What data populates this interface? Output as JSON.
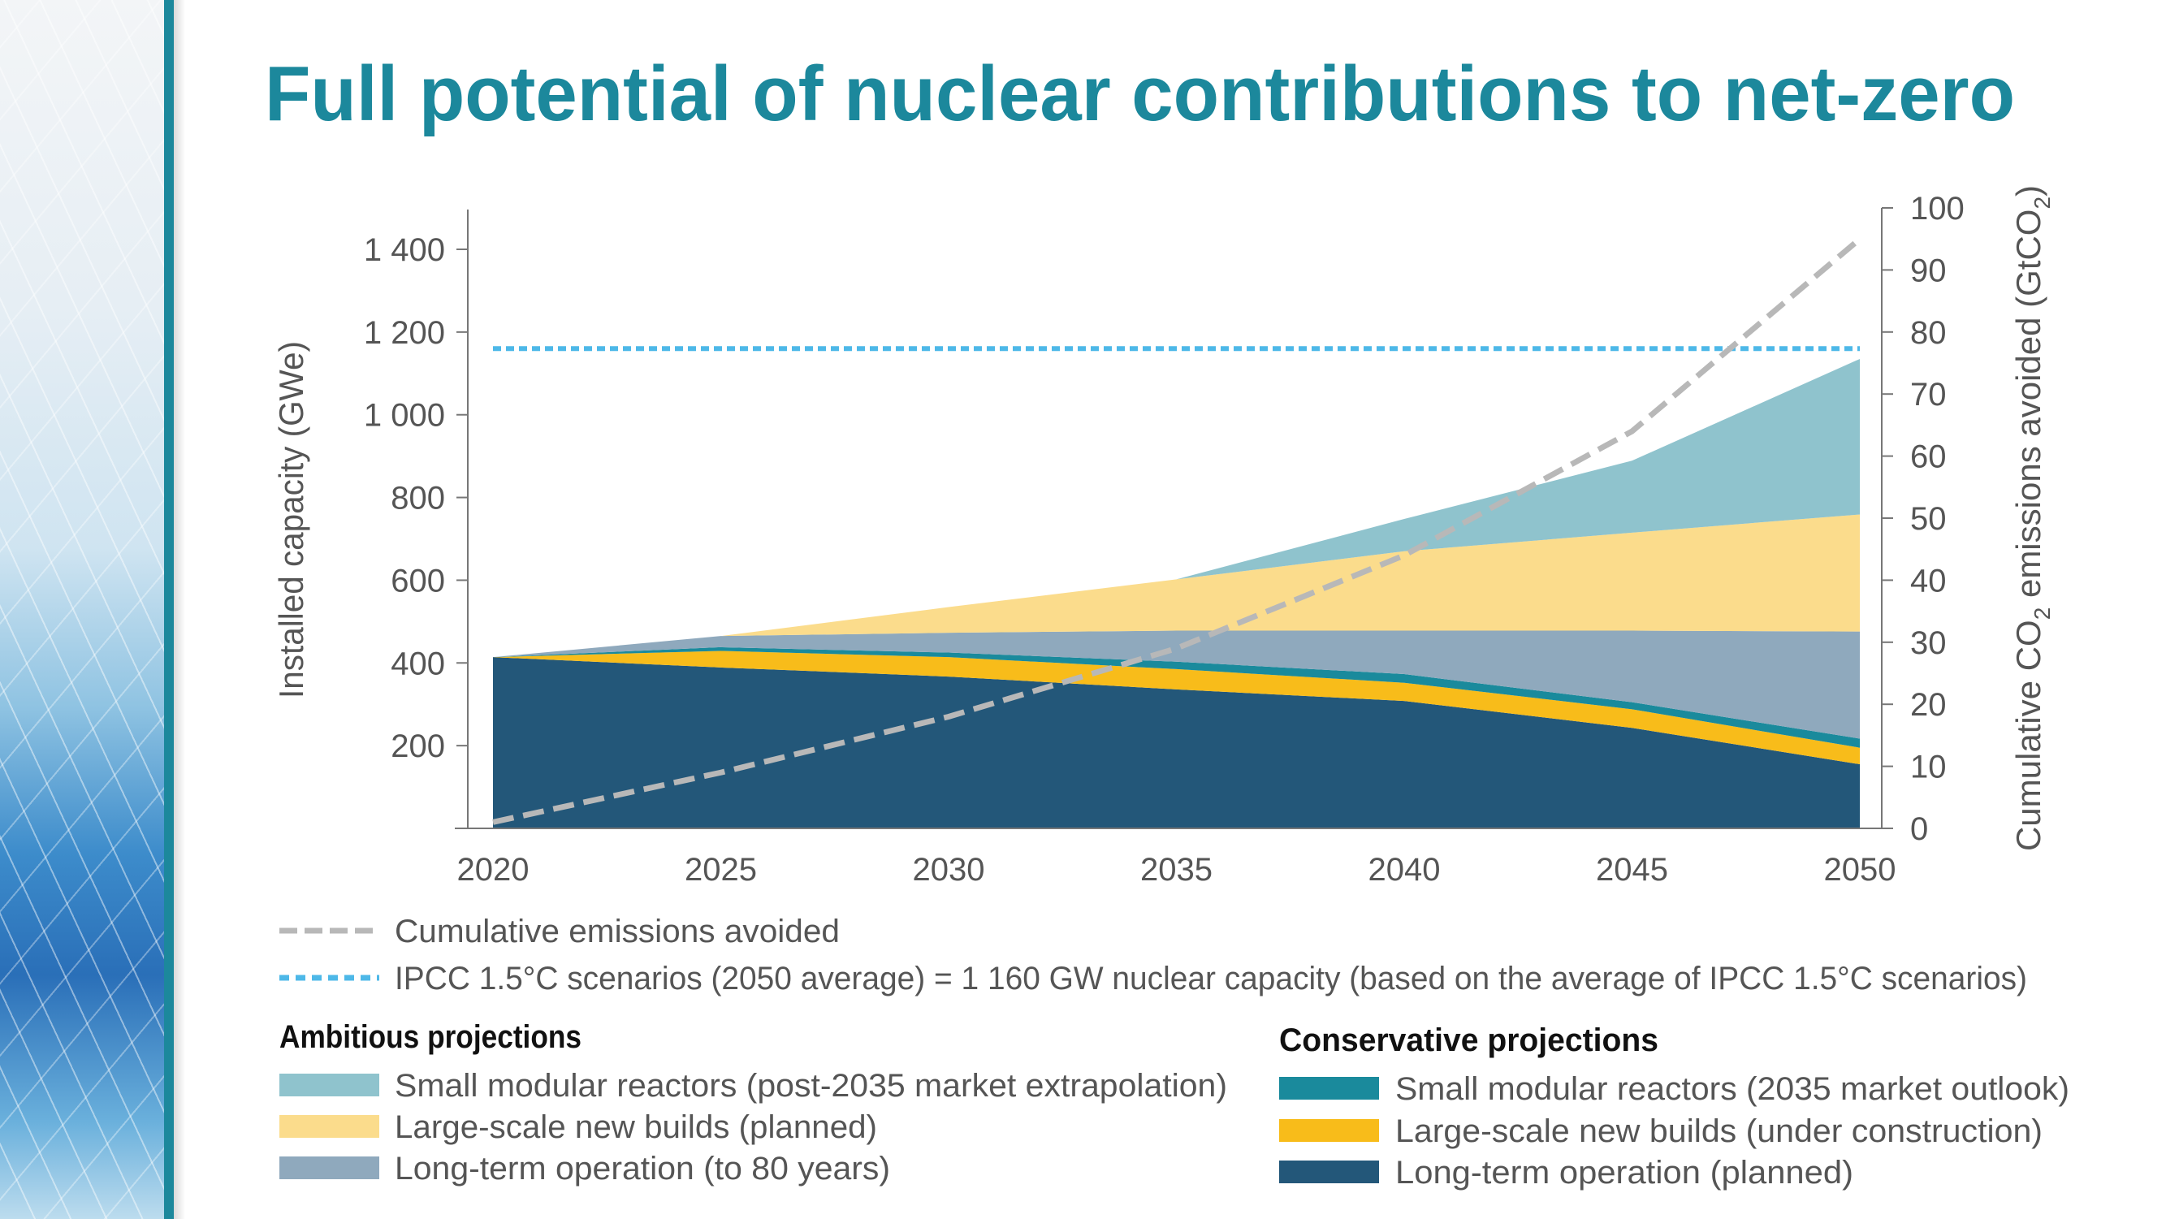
{
  "title": "Full potential of nuclear contributions to net-zero",
  "colors": {
    "title": "#1c889c",
    "smr_post2035": "#8fc3cd",
    "lsnb_planned": "#fbdc8c",
    "lto_80": "#8fa9bd",
    "smr_2035": "#1a8a9c",
    "lsnb_construction": "#f8bc1a",
    "lto_planned": "#235779",
    "emissions_line": "#b8b8b8",
    "ipcc_line": "#4db8e8"
  },
  "chart_data": {
    "type": "area",
    "stacked": true,
    "x": [
      2020,
      2025,
      2030,
      2035,
      2040,
      2045,
      2050
    ],
    "xticks": [
      "2020",
      "2025",
      "2030",
      "2035",
      "2040",
      "2045",
      "2050"
    ],
    "ylabel": "Installed capacity (GWe)",
    "ylim": [
      0,
      1500
    ],
    "yticks": [
      "200",
      "400",
      "600",
      "800",
      "1 000",
      "1 200",
      "1 400"
    ],
    "ytick_values": [
      200,
      400,
      600,
      800,
      1000,
      1200,
      1400
    ],
    "y2label": "Cumulative CO2 emissions avoided (GtCO2)",
    "y2label_parts": [
      "Cumulative CO",
      "2",
      " emissions avoided (GtCO",
      "2",
      ")"
    ],
    "y2lim": [
      0,
      100
    ],
    "y2ticks": [
      "0",
      "10",
      "20",
      "30",
      "40",
      "50",
      "60",
      "70",
      "80",
      "90",
      "100"
    ],
    "grid": false,
    "series": [
      {
        "name": "Long-term operation (planned)",
        "key": "lto_planned",
        "values": [
          414,
          389,
          367,
          336,
          308,
          243,
          155
        ]
      },
      {
        "name": "Large-scale new builds (under construction)",
        "key": "lsnb_construction",
        "values": [
          0,
          40,
          47,
          49,
          44,
          45,
          40
        ]
      },
      {
        "name": "Small modular reactors (2035 market outlook)",
        "key": "smr_2035",
        "values": [
          0,
          9,
          11,
          18,
          21,
          17,
          22
        ]
      },
      {
        "name": "Long-term operation (to 80 years)",
        "key": "lto_80",
        "values": [
          0,
          27,
          48,
          75,
          105,
          173,
          259
        ]
      },
      {
        "name": "Large-scale new builds (planned)",
        "key": "lsnb_planned",
        "values": [
          0,
          0,
          62,
          124,
          192,
          237,
          283
        ]
      },
      {
        "name": "Small modular reactors (post-2035 market extrapolation)",
        "key": "smr_post2035",
        "values": [
          0,
          0,
          0,
          0,
          78,
          174,
          376
        ]
      }
    ],
    "lines": [
      {
        "name": "Cumulative emissions avoided",
        "axis": "right",
        "style": "dashed",
        "values": [
          1,
          9,
          18,
          29,
          44,
          64,
          95
        ]
      },
      {
        "name": "IPCC 1.5°C scenarios (2050 average) = 1 160 GW nuclear capacity (based on the average of IPCC 1.5°C scenarios)",
        "axis": "left",
        "style": "dotted",
        "value": 1160
      }
    ]
  },
  "legend": {
    "emissions": "Cumulative emissions avoided",
    "ipcc": "IPCC 1.5°C scenarios (2050 average) = 1 160 GW nuclear capacity (based on the average of IPCC 1.5°C scenarios)",
    "ambitious": {
      "heading": "Ambitious projections",
      "items": [
        {
          "label": "Small modular reactors (post-2035 market extrapolation)",
          "key": "smr_post2035"
        },
        {
          "label": "Large-scale new builds (planned)",
          "key": "lsnb_planned"
        },
        {
          "label": "Long-term operation (to 80 years)",
          "key": "lto_80"
        }
      ]
    },
    "conservative": {
      "heading": "Conservative projections",
      "items": [
        {
          "label": "Small modular reactors (2035 market outlook)",
          "key": "smr_2035"
        },
        {
          "label": "Large-scale new builds (under construction)",
          "key": "lsnb_construction"
        },
        {
          "label": "Long-term operation (planned)",
          "key": "lto_planned"
        }
      ]
    }
  }
}
